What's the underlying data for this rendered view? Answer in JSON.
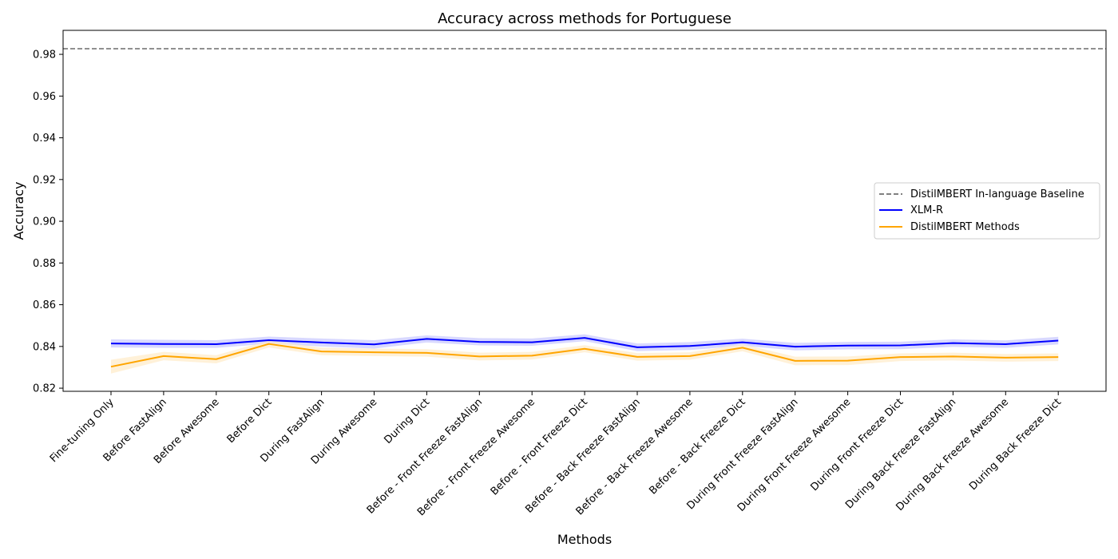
{
  "chart_data": {
    "type": "line",
    "title": "Accuracy across methods for Portuguese",
    "xlabel": "Methods",
    "ylabel": "Accuracy",
    "ylim": [
      0.8185,
      0.9915
    ],
    "yticks": [
      "0.82",
      "0.84",
      "0.86",
      "0.88",
      "0.90",
      "0.92",
      "0.94",
      "0.96",
      "0.98"
    ],
    "grid": false,
    "legend_position": "center-right",
    "categories": [
      "Fine-tuning Only",
      "Before FastAlign",
      "Before Awesome",
      "Before Dict",
      "During FastAlign",
      "During Awesome",
      "During Dict",
      "Before - Front Freeze FastAlign",
      "Before - Front Freeze Awesome",
      "Before - Front Freeze Dict",
      "Before - Back Freeze FastAlign",
      "Before - Back Freeze Awesome",
      "Before - Back Freeze Dict",
      "During Front Freeze FastAlign",
      "During Front Freeze Awesome",
      "During Front Freeze Dict",
      "During Back Freeze FastAlign",
      "During Back Freeze Awesome",
      "During Back Freeze Dict"
    ],
    "baseline": {
      "name": "DistilMBERT In-language Baseline",
      "value": 0.9827,
      "color": "#808080"
    },
    "series": [
      {
        "name": "XLM-R",
        "color": "#0000ff",
        "band_color": "#c8c8ff",
        "values": [
          0.8414,
          0.8412,
          0.8411,
          0.843,
          0.8419,
          0.841,
          0.8436,
          0.8422,
          0.842,
          0.8441,
          0.8396,
          0.8402,
          0.842,
          0.8399,
          0.8404,
          0.8405,
          0.8416,
          0.8411,
          0.8428
        ],
        "lower": [
          0.8395,
          0.8393,
          0.8393,
          0.8413,
          0.84,
          0.839,
          0.8419,
          0.8405,
          0.8403,
          0.8425,
          0.8378,
          0.8383,
          0.8403,
          0.8381,
          0.8386,
          0.8387,
          0.8398,
          0.8393,
          0.841
        ],
        "upper": [
          0.8434,
          0.8432,
          0.843,
          0.8447,
          0.8438,
          0.843,
          0.8453,
          0.844,
          0.8438,
          0.8458,
          0.8414,
          0.8421,
          0.8437,
          0.8417,
          0.8422,
          0.8423,
          0.8434,
          0.8429,
          0.8446
        ]
      },
      {
        "name": "DistilMBERT Methods",
        "color": "#ffa500",
        "band_color": "#ffebc8",
        "values": [
          0.8303,
          0.8354,
          0.8339,
          0.8412,
          0.8376,
          0.8372,
          0.8369,
          0.8352,
          0.8356,
          0.8389,
          0.835,
          0.8354,
          0.8394,
          0.8331,
          0.8332,
          0.8349,
          0.8352,
          0.8346,
          0.8349
        ],
        "lower": [
          0.827,
          0.8334,
          0.8319,
          0.8395,
          0.8358,
          0.8354,
          0.8351,
          0.8333,
          0.8337,
          0.8372,
          0.8332,
          0.8336,
          0.8377,
          0.831,
          0.8311,
          0.833,
          0.8333,
          0.8327,
          0.833
        ],
        "upper": [
          0.8336,
          0.8374,
          0.8358,
          0.8428,
          0.8394,
          0.839,
          0.8387,
          0.837,
          0.8374,
          0.8406,
          0.8368,
          0.8372,
          0.8411,
          0.8351,
          0.8352,
          0.8367,
          0.837,
          0.8364,
          0.8367
        ]
      }
    ]
  }
}
